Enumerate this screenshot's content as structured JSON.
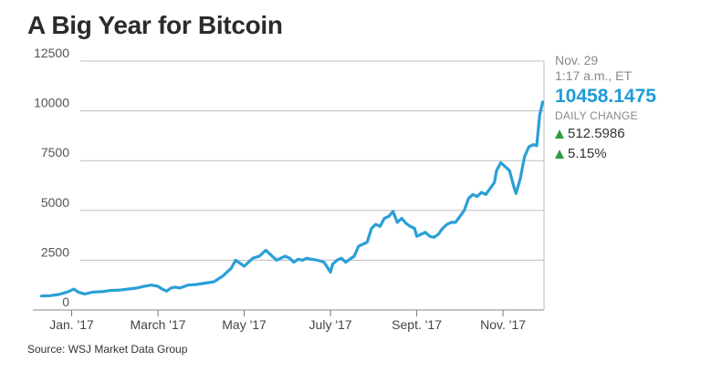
{
  "title": "A Big Year for Bitcoin",
  "source": "Source: WSJ Market Data Group",
  "info": {
    "date": "Nov. 29",
    "time": "1:17 a.m., ET",
    "price": "10458.1475",
    "daily_change_label": "DAILY CHANGE",
    "change_abs": "512.5986",
    "change_pct": "5.15%"
  },
  "colors": {
    "line": "#2a9fd6",
    "price": "#1f9bd6",
    "up": "#2e9e44",
    "grid": "#bdbdbd"
  },
  "chart_data": {
    "type": "line",
    "title": "A Big Year for Bitcoin",
    "xlabel": "",
    "ylabel": "",
    "x_range": [
      -0.9,
      10.95
    ],
    "ylim": [
      0,
      12500
    ],
    "y_ticks": [
      0,
      2500,
      5000,
      7500,
      10000,
      12500
    ],
    "y_tick_labels": [
      "0",
      "2500",
      "5000",
      "7500",
      "10000",
      "12500"
    ],
    "x_ticks": [
      0,
      2,
      4,
      6,
      8,
      10
    ],
    "x_tick_labels": [
      "Jan. '17",
      "March '17",
      "May '17",
      "July '17",
      "Sept. '17",
      "Nov. '17"
    ],
    "grid": true,
    "series": [
      {
        "name": "Bitcoin",
        "x": [
          -0.7,
          -0.5,
          -0.3,
          -0.1,
          0.0,
          0.05,
          0.15,
          0.3,
          0.5,
          0.7,
          0.9,
          1.1,
          1.3,
          1.5,
          1.7,
          1.85,
          2.0,
          2.1,
          2.2,
          2.3,
          2.4,
          2.5,
          2.7,
          2.9,
          3.1,
          3.3,
          3.5,
          3.7,
          3.8,
          4.0,
          4.2,
          4.35,
          4.5,
          4.6,
          4.75,
          4.85,
          4.95,
          5.05,
          5.15,
          5.25,
          5.35,
          5.45,
          5.55,
          5.7,
          5.85,
          6.0,
          6.05,
          6.15,
          6.25,
          6.35,
          6.45,
          6.55,
          6.65,
          6.75,
          6.85,
          6.95,
          7.05,
          7.15,
          7.25,
          7.35,
          7.45,
          7.55,
          7.65,
          7.75,
          7.85,
          7.95,
          8.0,
          8.1,
          8.2,
          8.3,
          8.4,
          8.5,
          8.6,
          8.7,
          8.8,
          8.9,
          9.0,
          9.1,
          9.2,
          9.3,
          9.4,
          9.5,
          9.6,
          9.7,
          9.8,
          9.85,
          9.95,
          10.05,
          10.15,
          10.2,
          10.25,
          10.3,
          10.4,
          10.5,
          10.6,
          10.7,
          10.78,
          10.85,
          10.92
        ],
        "values": [
          700,
          720,
          780,
          900,
          1000,
          1050,
          900,
          800,
          900,
          920,
          980,
          1000,
          1050,
          1100,
          1200,
          1250,
          1190,
          1050,
          950,
          1100,
          1150,
          1100,
          1250,
          1280,
          1350,
          1420,
          1700,
          2100,
          2500,
          2200,
          2600,
          2700,
          3000,
          2800,
          2500,
          2600,
          2700,
          2600,
          2400,
          2550,
          2500,
          2600,
          2550,
          2500,
          2400,
          1900,
          2300,
          2500,
          2600,
          2400,
          2550,
          2700,
          3200,
          3300,
          3400,
          4100,
          4300,
          4200,
          4600,
          4700,
          4950,
          4400,
          4600,
          4350,
          4200,
          4100,
          3700,
          3800,
          3900,
          3700,
          3650,
          3800,
          4100,
          4300,
          4400,
          4400,
          4700,
          5000,
          5600,
          5800,
          5700,
          5900,
          5800,
          6100,
          6400,
          7000,
          7400,
          7200,
          7000,
          6600,
          6200,
          5850,
          6600,
          7700,
          8200,
          8300,
          8250,
          9800,
          10450
        ]
      }
    ],
    "annotations": [
      "Nov. 29",
      "1:17 a.m., ET",
      "10458.1475",
      "DAILY CHANGE",
      "512.5986",
      "5.15%"
    ]
  }
}
